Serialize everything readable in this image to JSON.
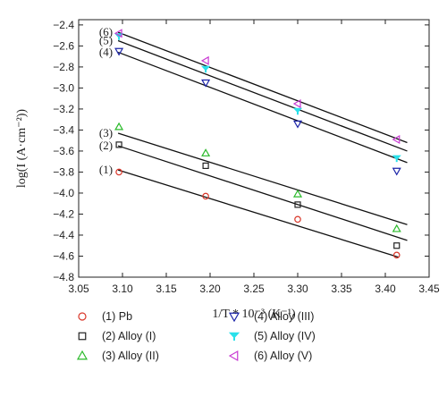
{
  "chart_data": {
    "type": "scatter",
    "title": "",
    "xlabel": "1/T * 10⁻³ (K⁻¹)",
    "ylabel": "log(I (A·cm⁻²))",
    "xlim": [
      3.05,
      3.45
    ],
    "ylim": [
      -4.8,
      -2.35
    ],
    "xticks": [
      "3.05",
      "3.10",
      "3.15",
      "3.20",
      "3.25",
      "3.30",
      "3.35",
      "3.40",
      "3.45"
    ],
    "yticks": [
      "-4.8",
      "-4.6",
      "-4.4",
      "-4.2",
      "-4.0",
      "-3.8",
      "-3.6",
      "-3.4",
      "-3.2",
      "-3.0",
      "-2.8",
      "-2.6",
      "-2.4"
    ],
    "grid": false,
    "legend_position": "bottom",
    "series": [
      {
        "name": "(1) Pb",
        "label": "(1)",
        "marker": "circle",
        "color": "#d9372a",
        "x": [
          3.096,
          3.195,
          3.3,
          3.413
        ],
        "y": [
          -3.8,
          -4.03,
          -4.25,
          -4.59
        ],
        "fit": {
          "x": [
            3.095,
            3.415
          ],
          "y": [
            -3.78,
            -4.61
          ]
        }
      },
      {
        "name": "(2) Alloy (I)",
        "label": "(2)",
        "marker": "square",
        "color": "#222222",
        "x": [
          3.096,
          3.195,
          3.3,
          3.413
        ],
        "y": [
          -3.54,
          -3.74,
          -4.11,
          -4.5
        ],
        "fit": {
          "x": [
            3.095,
            3.425
          ],
          "y": [
            -3.55,
            -4.45
          ]
        }
      },
      {
        "name": "(3) Alloy (II)",
        "label": "(3)",
        "marker": "triangle-up",
        "color": "#2aba2a",
        "x": [
          3.096,
          3.195,
          3.3,
          3.413
        ],
        "y": [
          -3.37,
          -3.62,
          -4.01,
          -4.34
        ],
        "fit": {
          "x": [
            3.095,
            3.425
          ],
          "y": [
            -3.43,
            -4.3
          ]
        }
      },
      {
        "name": "(4) Alloy (III)",
        "label": "(4)",
        "marker": "triangle-down",
        "color": "#1a23a8",
        "x": [
          3.096,
          3.195,
          3.3,
          3.413
        ],
        "y": [
          -2.65,
          -2.95,
          -3.34,
          -3.79
        ],
        "fit": {
          "x": [
            3.095,
            3.425
          ],
          "y": [
            -2.66,
            -3.71
          ]
        }
      },
      {
        "name": "(5) Alloy (IV)",
        "label": "(5)",
        "marker": "triangle-down-filled",
        "color": "#2ae0ea",
        "x": [
          3.096,
          3.195,
          3.3,
          3.413
        ],
        "y": [
          -2.51,
          -2.82,
          -3.22,
          -3.67
        ],
        "fit": {
          "x": [
            3.095,
            3.425
          ],
          "y": [
            -2.55,
            -3.6
          ]
        }
      },
      {
        "name": "(6) Alloy (V)",
        "label": "(6)",
        "marker": "triangle-left",
        "color": "#c93ad3",
        "x": [
          3.096,
          3.195,
          3.3,
          3.413
        ],
        "y": [
          -2.48,
          -2.74,
          -3.15,
          -3.49
        ],
        "fit": {
          "x": [
            3.095,
            3.425
          ],
          "y": [
            -2.47,
            -3.52
          ]
        }
      }
    ]
  }
}
